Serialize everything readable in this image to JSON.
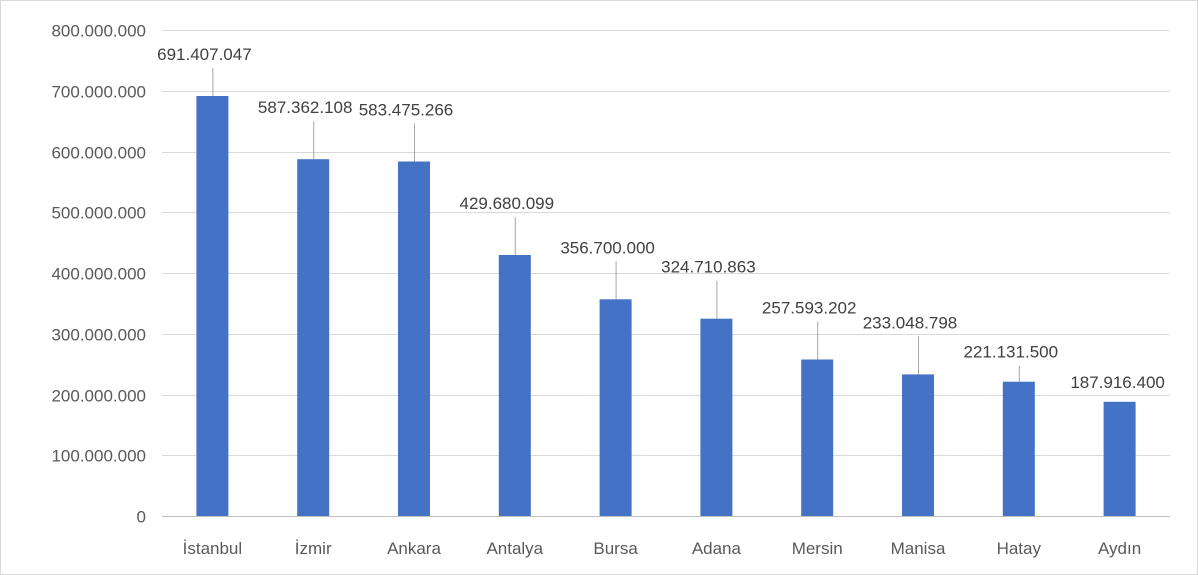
{
  "chart_data": {
    "type": "bar",
    "title": "",
    "xlabel": "",
    "ylabel": "",
    "categories": [
      "İstanbul",
      "İzmir",
      "Ankara",
      "Antalya",
      "Bursa",
      "Adana",
      "Mersin",
      "Manisa",
      "Hatay",
      "Aydın"
    ],
    "values": [
      691407047,
      587362108,
      583475266,
      429680099,
      356700000,
      324710863,
      257593202,
      233048798,
      221131500,
      187916400
    ],
    "data_labels": [
      "691.407.047",
      "587.362.108",
      "583.475.266",
      "429.680.099",
      "356.700.000",
      "324.710.863",
      "257.593.202",
      "233.048.798",
      "221.131.500",
      "187.916.400"
    ],
    "ylim": [
      0,
      800000000
    ],
    "y_ticks": [
      0,
      100000000,
      200000000,
      300000000,
      400000000,
      500000000,
      600000000,
      700000000,
      800000000
    ],
    "y_tick_labels": [
      "0",
      "100.000.000",
      "200.000.000",
      "300.000.000",
      "400.000.000",
      "500.000.000",
      "600.000.000",
      "700.000.000",
      "800.000.000"
    ],
    "grid": true,
    "legend": "none",
    "bar_color": "#4472c4"
  }
}
